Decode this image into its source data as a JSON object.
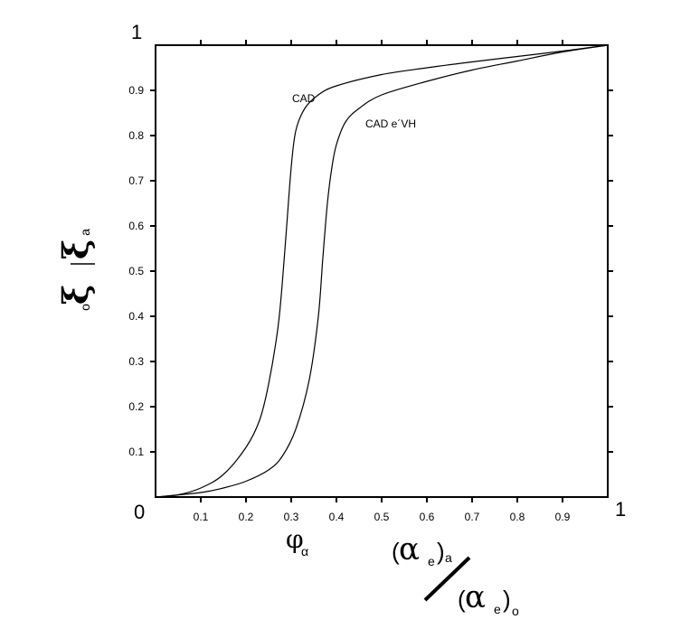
{
  "chart_data": {
    "type": "line",
    "xlim": [
      0,
      1
    ],
    "ylim": [
      0,
      1
    ],
    "grid": false,
    "corner_labels": {
      "origin": "0",
      "x_max": "1",
      "y_max": "1"
    },
    "x_ticks": [
      "0.1",
      "0.2",
      "0.3",
      "0.4",
      "0.5",
      "0.6",
      "0.7",
      "0.8",
      "0.9"
    ],
    "y_ticks": [
      "0.1",
      "0.2",
      "0.3",
      "0.4",
      "0.5",
      "0.6",
      "0.7",
      "0.8",
      "0.9"
    ],
    "xlabel": {
      "symbol": "φ",
      "subscript": "α"
    },
    "ylabel": {
      "numerator_symbol": "ξ",
      "numerator_sub": "a",
      "denominator_symbol": "ξ",
      "denominator_sub": "o"
    },
    "x_formula": {
      "numerator_symbol": "α",
      "numerator_sub": "e",
      "numerator_outer_sub": "a",
      "denominator_symbol": "α",
      "denominator_sub": "e",
      "denominator_outer_sub": "o"
    },
    "series": [
      {
        "name": "CAD",
        "x": [
          0.0,
          0.05,
          0.1,
          0.15,
          0.2,
          0.23,
          0.25,
          0.27,
          0.28,
          0.29,
          0.3,
          0.31,
          0.33,
          0.36,
          0.4,
          0.5,
          0.6,
          0.7,
          0.8,
          0.9,
          1.0
        ],
        "y": [
          0.0,
          0.005,
          0.02,
          0.05,
          0.11,
          0.17,
          0.25,
          0.37,
          0.47,
          0.6,
          0.73,
          0.81,
          0.86,
          0.89,
          0.91,
          0.935,
          0.95,
          0.963,
          0.975,
          0.987,
          1.0
        ]
      },
      {
        "name": "CAD e´VH",
        "x": [
          0.0,
          0.1,
          0.15,
          0.2,
          0.25,
          0.28,
          0.31,
          0.34,
          0.36,
          0.37,
          0.38,
          0.39,
          0.4,
          0.42,
          0.45,
          0.5,
          0.6,
          0.7,
          0.8,
          0.9,
          1.0
        ],
        "y": [
          0.0,
          0.01,
          0.02,
          0.035,
          0.06,
          0.09,
          0.15,
          0.26,
          0.4,
          0.53,
          0.65,
          0.73,
          0.78,
          0.83,
          0.86,
          0.89,
          0.92,
          0.945,
          0.965,
          0.985,
          1.0
        ]
      }
    ]
  }
}
